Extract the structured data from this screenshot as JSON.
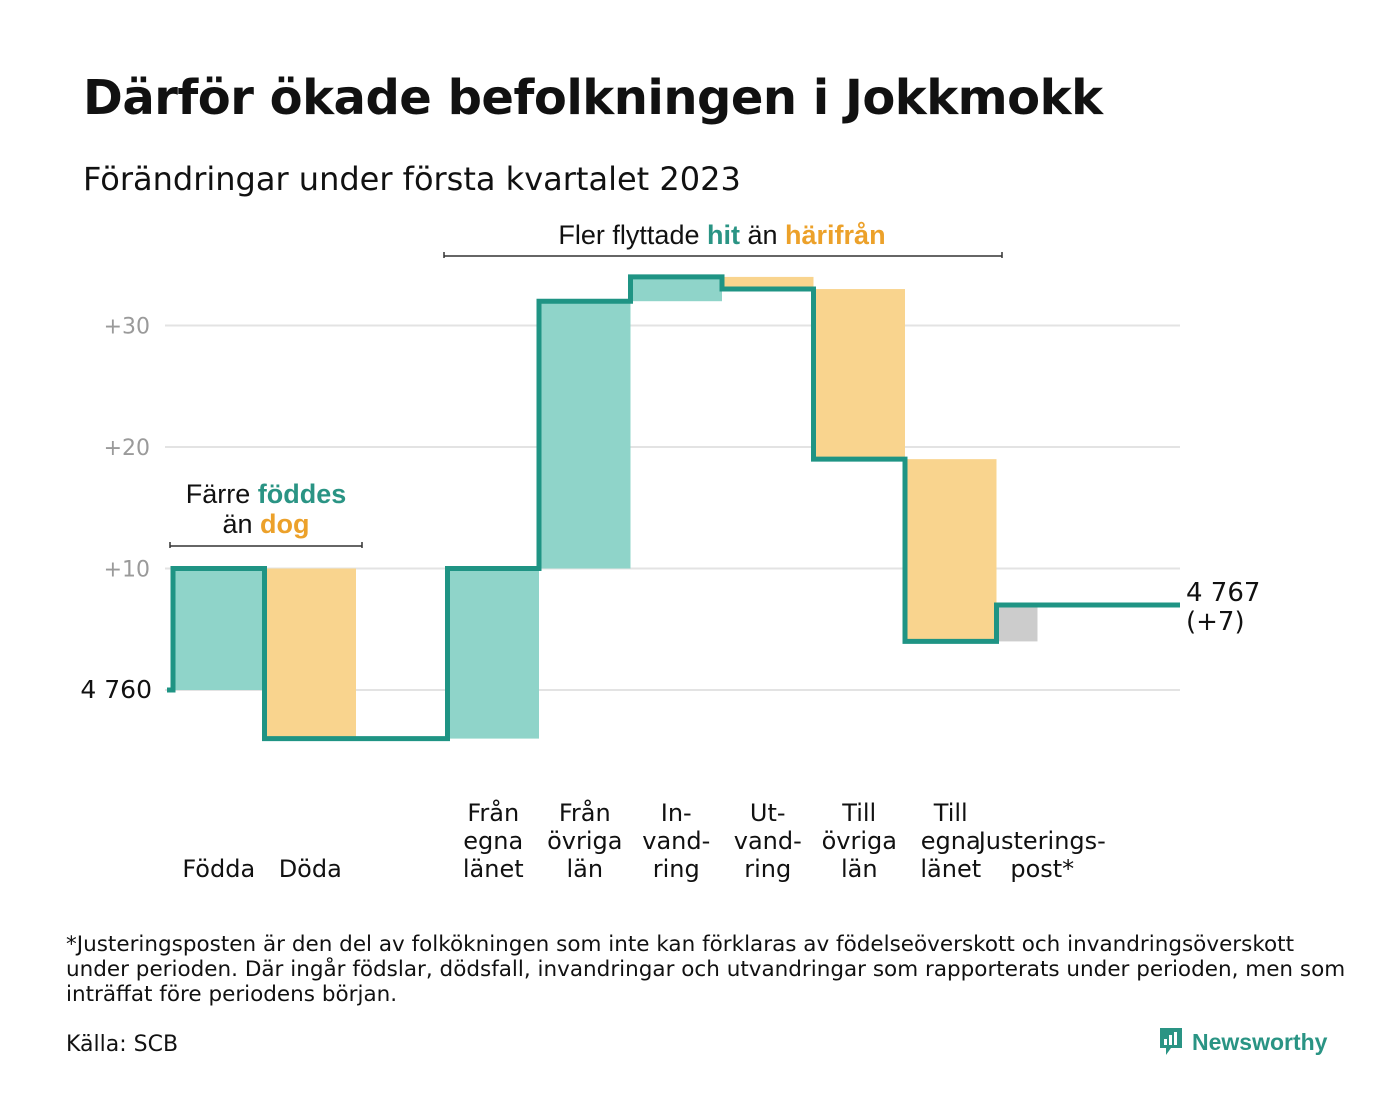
{
  "title": "Därför ökade befolkningen i Jokkmokk",
  "subtitle": "Förändringar under första kvartalet 2023",
  "footnote": "*Justeringsposten är den del av folkökningen som inte kan förklaras av födelseöverskott och invandringsöverskott under perioden. Där ingår födslar, dödsfall, invandringar och utvandringar som rapporterats under perioden, men som inträffat före periodens början.",
  "source": "Källa: SCB",
  "brand": "Newsworthy",
  "colors": {
    "line": "#1f9484",
    "increase": "#8fd4c9",
    "decrease": "#f9d48e",
    "adjustment": "#cccccc",
    "grid": "#e3e3e3",
    "teal_text": "#2a9484",
    "orange_text": "#eca12a",
    "axis_text": "#9a9a9a"
  },
  "annotations": {
    "births": {
      "line1": [
        "Färre ",
        "föddes"
      ],
      "line2": [
        "än ",
        "dog"
      ]
    },
    "migration": [
      "Fler flyttade ",
      "hit",
      " än ",
      "härifrån"
    ]
  },
  "chart_data": {
    "type": "waterfall",
    "start": {
      "label": "4 760",
      "value": 4760
    },
    "end": {
      "label_value": "4 767",
      "label_change": "(+7)",
      "value": 4767,
      "change": 7
    },
    "y_ticks": [
      {
        "change": 10,
        "label": "+10"
      },
      {
        "change": 20,
        "label": "+20"
      },
      {
        "change": 30,
        "label": "+30"
      }
    ],
    "ylim": [
      -4,
      34
    ],
    "steps": [
      {
        "label": [
          "Födda"
        ],
        "delta": 10,
        "kind": "increase"
      },
      {
        "label": [
          "Döda"
        ],
        "delta": -14,
        "kind": "decrease"
      },
      {
        "label": [],
        "delta": 0,
        "kind": "gap"
      },
      {
        "label": [
          "Från",
          "egna",
          "länet"
        ],
        "delta": 14,
        "kind": "increase"
      },
      {
        "label": [
          "Från",
          "övriga",
          "län"
        ],
        "delta": 22,
        "kind": "increase"
      },
      {
        "label": [
          "In-",
          "vand-",
          "ring"
        ],
        "delta": 2,
        "kind": "increase"
      },
      {
        "label": [
          "Ut-",
          "vand-",
          "ring"
        ],
        "delta": -1,
        "kind": "decrease"
      },
      {
        "label": [
          "Till",
          "övriga",
          "län"
        ],
        "delta": -14,
        "kind": "decrease"
      },
      {
        "label": [
          "Till",
          "egna",
          "länet"
        ],
        "delta": -15,
        "kind": "decrease"
      },
      {
        "label": [
          "Justerings-",
          "post*"
        ],
        "delta": 3,
        "kind": "adjustment"
      }
    ]
  }
}
